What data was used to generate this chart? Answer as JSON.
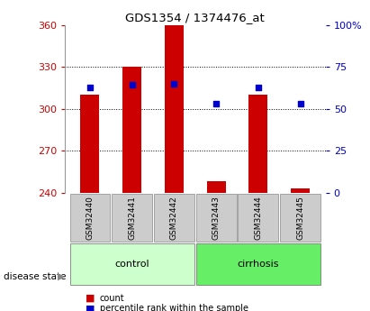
{
  "title": "GDS1354 / 1374476_at",
  "samples": [
    "GSM32440",
    "GSM32441",
    "GSM32442",
    "GSM32443",
    "GSM32444",
    "GSM32445"
  ],
  "bar_values": [
    310,
    330,
    360,
    248,
    310,
    243
  ],
  "bar_bottom": 240,
  "percentile_values": [
    315,
    317,
    318,
    304,
    315,
    304
  ],
  "ylim_left": [
    240,
    360
  ],
  "ylim_right": [
    0,
    100
  ],
  "yticks_left": [
    240,
    270,
    300,
    330,
    360
  ],
  "yticks_right": [
    0,
    25,
    50,
    75,
    100
  ],
  "bar_color": "#cc0000",
  "marker_color": "#0000cc",
  "groups": [
    {
      "label": "control",
      "indices": [
        0,
        1,
        2
      ],
      "color": "#ccffcc"
    },
    {
      "label": "cirrhosis",
      "indices": [
        3,
        4,
        5
      ],
      "color": "#66ee66"
    }
  ],
  "group_label_text": "disease state",
  "legend_items": [
    {
      "label": "count",
      "color": "#cc0000"
    },
    {
      "label": "percentile rank within the sample",
      "color": "#0000cc"
    }
  ],
  "bg_color": "#ffffff",
  "tick_label_color_left": "#cc0000",
  "tick_label_color_right": "#0000cc",
  "xticklabel_bg": "#cccccc",
  "bar_width": 0.45
}
